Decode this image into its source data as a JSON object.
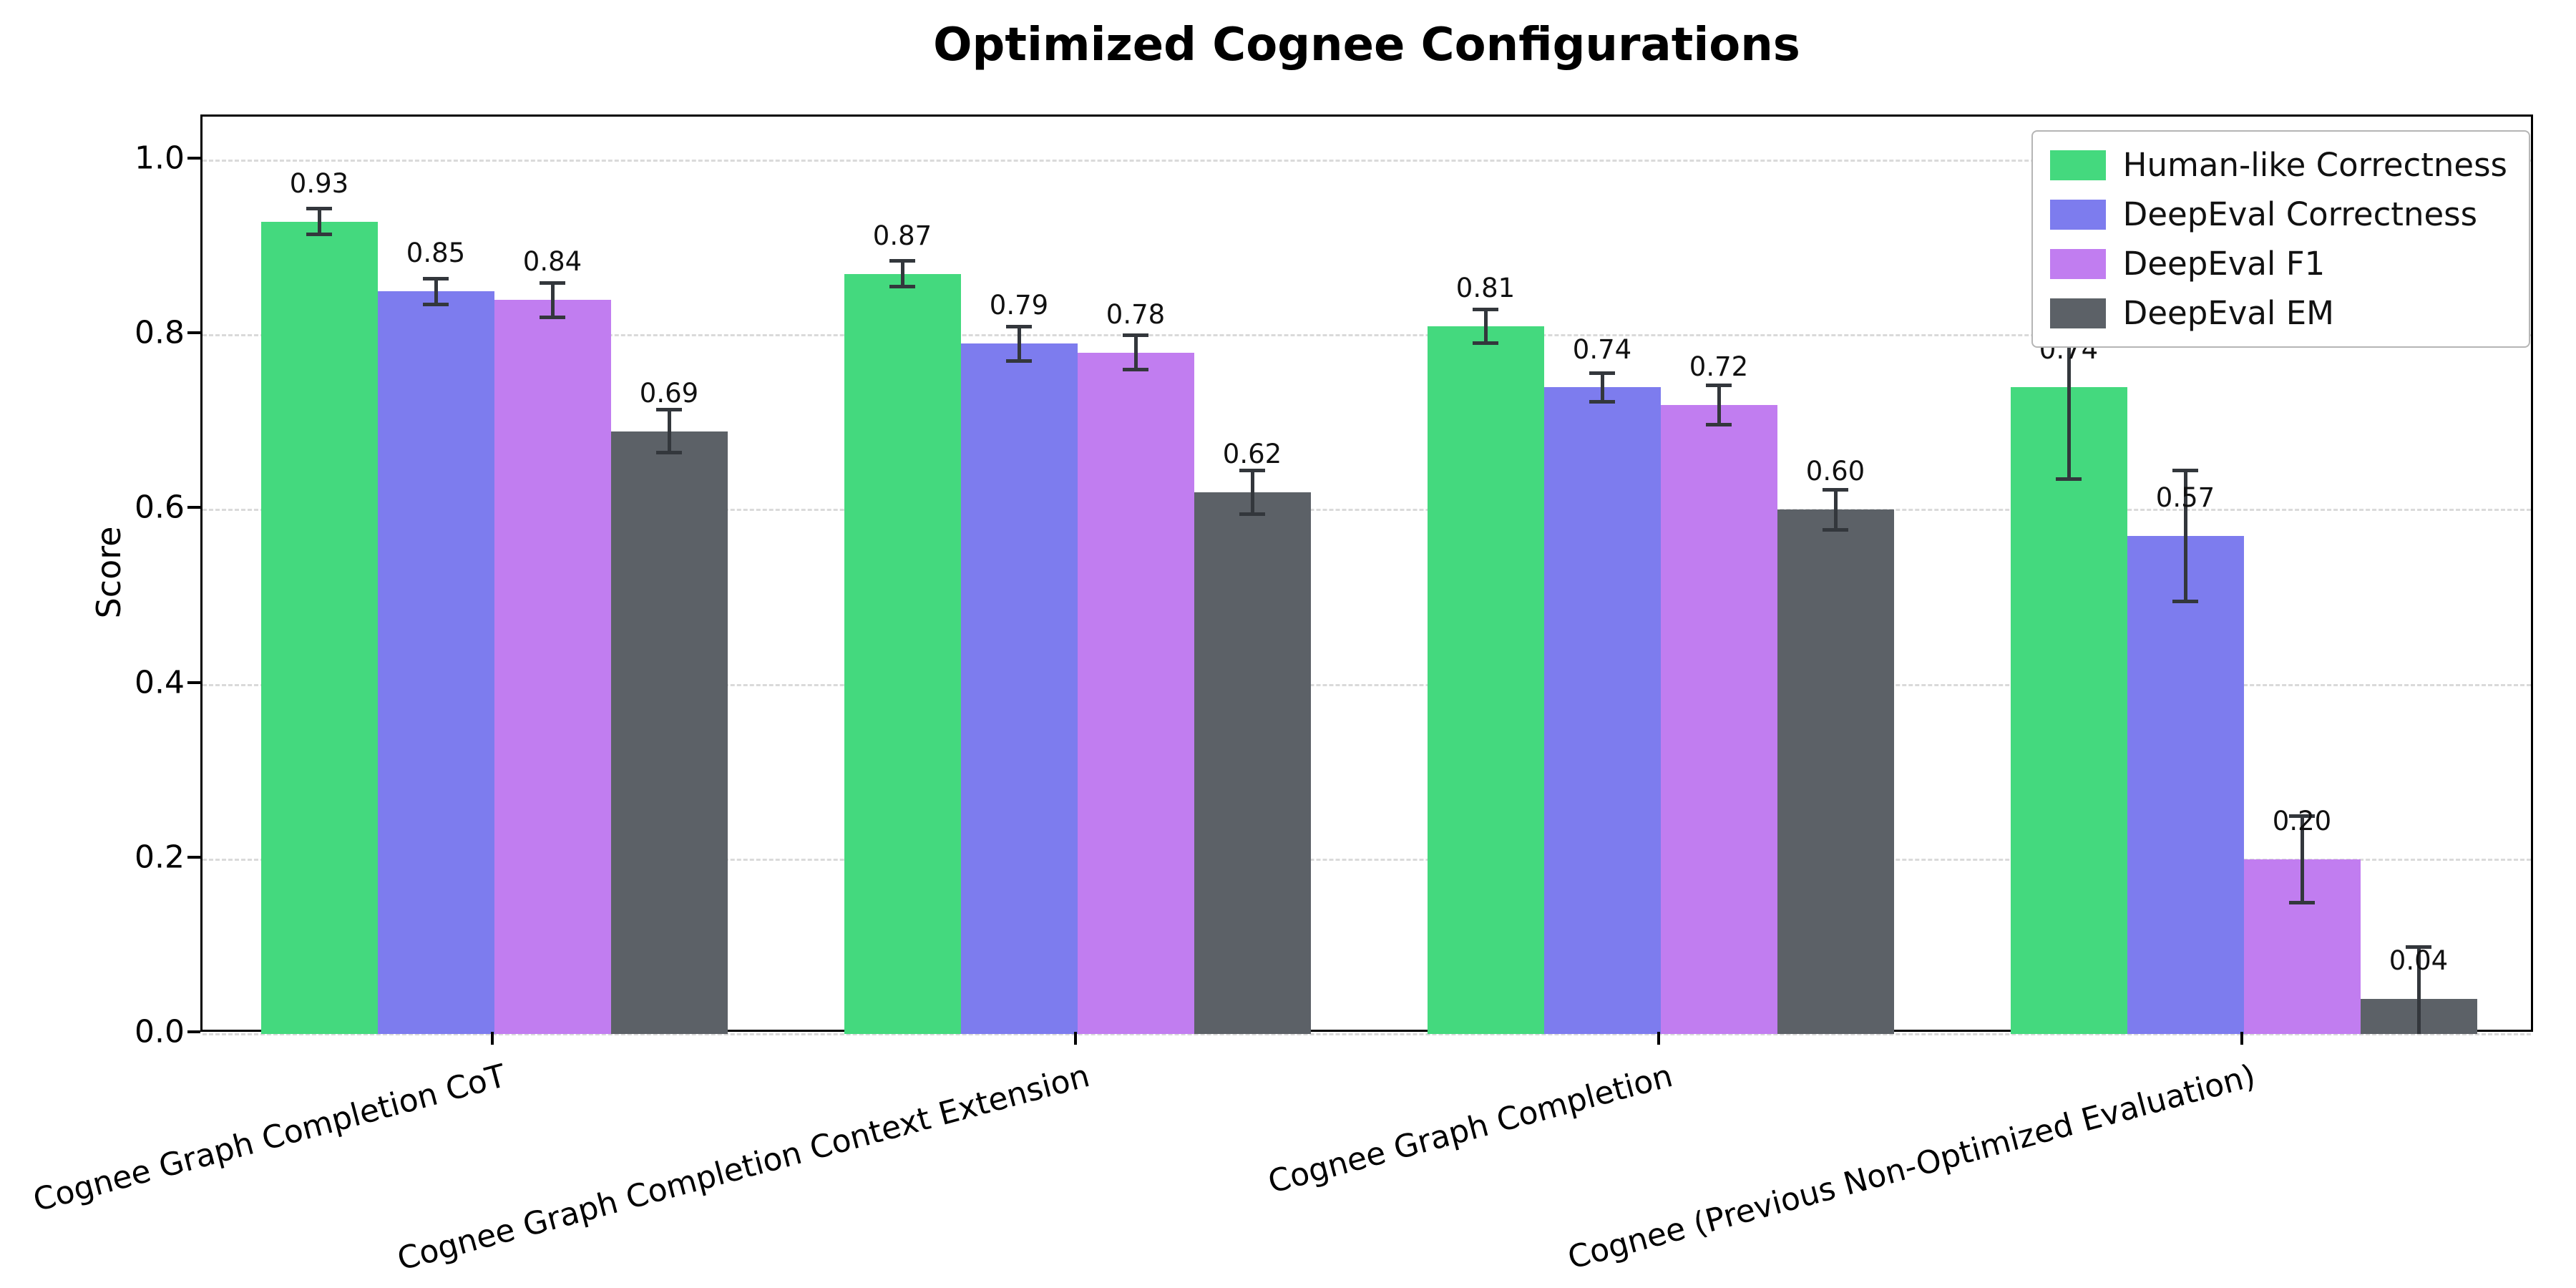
{
  "chart_data": {
    "type": "bar",
    "title": "Optimized Cognee Configurations",
    "ylabel": "Score",
    "xlabel": "",
    "ylim": [
      0,
      1.05
    ],
    "yticks": [
      0.0,
      0.2,
      0.4,
      0.6,
      0.8,
      1.0
    ],
    "grid": "horizontal-dashed",
    "legend_position": "upper-right",
    "categories": [
      "Cognee Graph Completion CoT",
      "Cognee Graph Completion Context Extension",
      "Cognee Graph Completion",
      "Cognee (Previous Non-Optimized Evaluation)"
    ],
    "series": [
      {
        "name": "Human-like Correctness",
        "color": "#44d97e",
        "values": [
          0.93,
          0.87,
          0.81,
          0.74
        ],
        "errors": [
          0.015,
          0.015,
          0.02,
          0.105
        ]
      },
      {
        "name": "DeepEval Correctness",
        "color": "#7d7cee",
        "values": [
          0.85,
          0.79,
          0.74,
          0.57
        ],
        "errors": [
          0.015,
          0.02,
          0.017,
          0.075
        ]
      },
      {
        "name": "DeepEval F1",
        "color": "#c17df0",
        "values": [
          0.84,
          0.78,
          0.72,
          0.2
        ],
        "errors": [
          0.02,
          0.02,
          0.023,
          0.05
        ]
      },
      {
        "name": "DeepEval EM",
        "color": "#5c6167",
        "values": [
          0.69,
          0.62,
          0.6,
          0.04
        ],
        "errors": [
          0.025,
          0.025,
          0.023,
          0.06
        ]
      }
    ],
    "error_bar_color": "#33373c",
    "gridline_color": "#dadada"
  }
}
